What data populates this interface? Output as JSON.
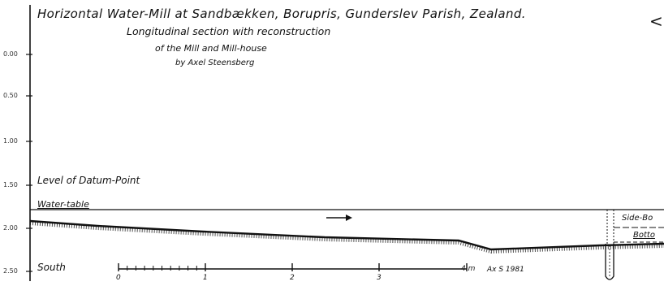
{
  "title": {
    "line1": "Horizontal Water-Mill at Sandbækken, Borupris, Gunderslev Parish, Zealand.",
    "line2": "Longitudinal section with reconstruction",
    "line3": "of the Mill and Mill-house",
    "line4": "by Axel Steensberg"
  },
  "corner_mark": "<",
  "vertical_axis": {
    "ticks": [
      "0.00",
      "0.50",
      "1.00",
      "1.50",
      "2.00",
      "2.50"
    ]
  },
  "labels": {
    "datum": "Level of Datum-Point",
    "water_table": "Water-table",
    "south": "South",
    "side_bo": "Side-Bo",
    "botto": "Botto"
  },
  "scale_bar": {
    "numbers": [
      "0",
      "1",
      "2",
      "3",
      "4 m"
    ],
    "signature": "Ax S 1981"
  }
}
